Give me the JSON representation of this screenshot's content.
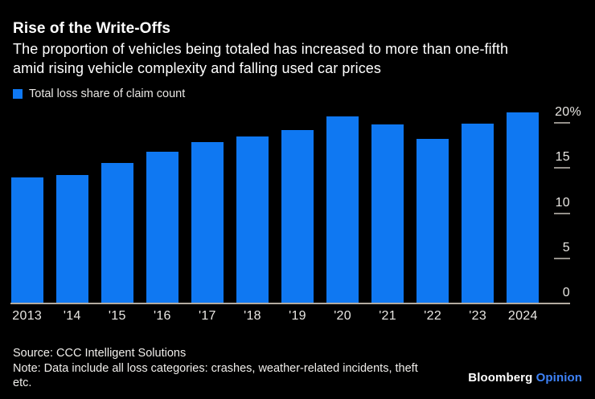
{
  "header": {
    "title": "Rise of the Write-Offs",
    "subtitle_line1": "The proportion of vehicles being totaled has increased to more than one-fifth",
    "subtitle_line2": "amid rising vehicle complexity and falling used car prices"
  },
  "legend": {
    "label": "Total loss share of claim count"
  },
  "chart_data": {
    "type": "bar",
    "title": "Rise of the Write-Offs",
    "series_name": "Total loss share of claim count",
    "categories": [
      "2013",
      "'14",
      "'15",
      "'16",
      "'17",
      "'18",
      "'19",
      "'20",
      "'21",
      "'22",
      "'23",
      "2024"
    ],
    "values": [
      14.0,
      14.2,
      15.6,
      16.8,
      17.9,
      18.5,
      19.2,
      20.7,
      19.8,
      18.2,
      19.9,
      21.2
    ],
    "unit": "%",
    "xlabel": "",
    "ylabel": "",
    "ylim": [
      0,
      22
    ],
    "yticks": [
      0,
      5,
      10,
      15,
      20
    ],
    "ytick_labels": [
      "0",
      "5",
      "10",
      "15",
      "20%"
    ],
    "axis_side": "right",
    "grid": false,
    "legend_position": "top-left",
    "bar_color": "#0f78f2"
  },
  "footer": {
    "source": "Source: CCC Intelligent Solutions",
    "note_line1": "Note: Data include all loss categories: crashes, weather-related incidents, theft",
    "note_line2": "etc.",
    "brand_name": "Bloomberg",
    "brand_suffix": "Opinion"
  },
  "colors": {
    "background": "#000000",
    "bar": "#0f78f2",
    "baseline": "#b3aba0",
    "tick": "#94908a",
    "text": "#ffffff",
    "axis_text": "#e8e6e2",
    "brand_opinion": "#3e82f7"
  }
}
